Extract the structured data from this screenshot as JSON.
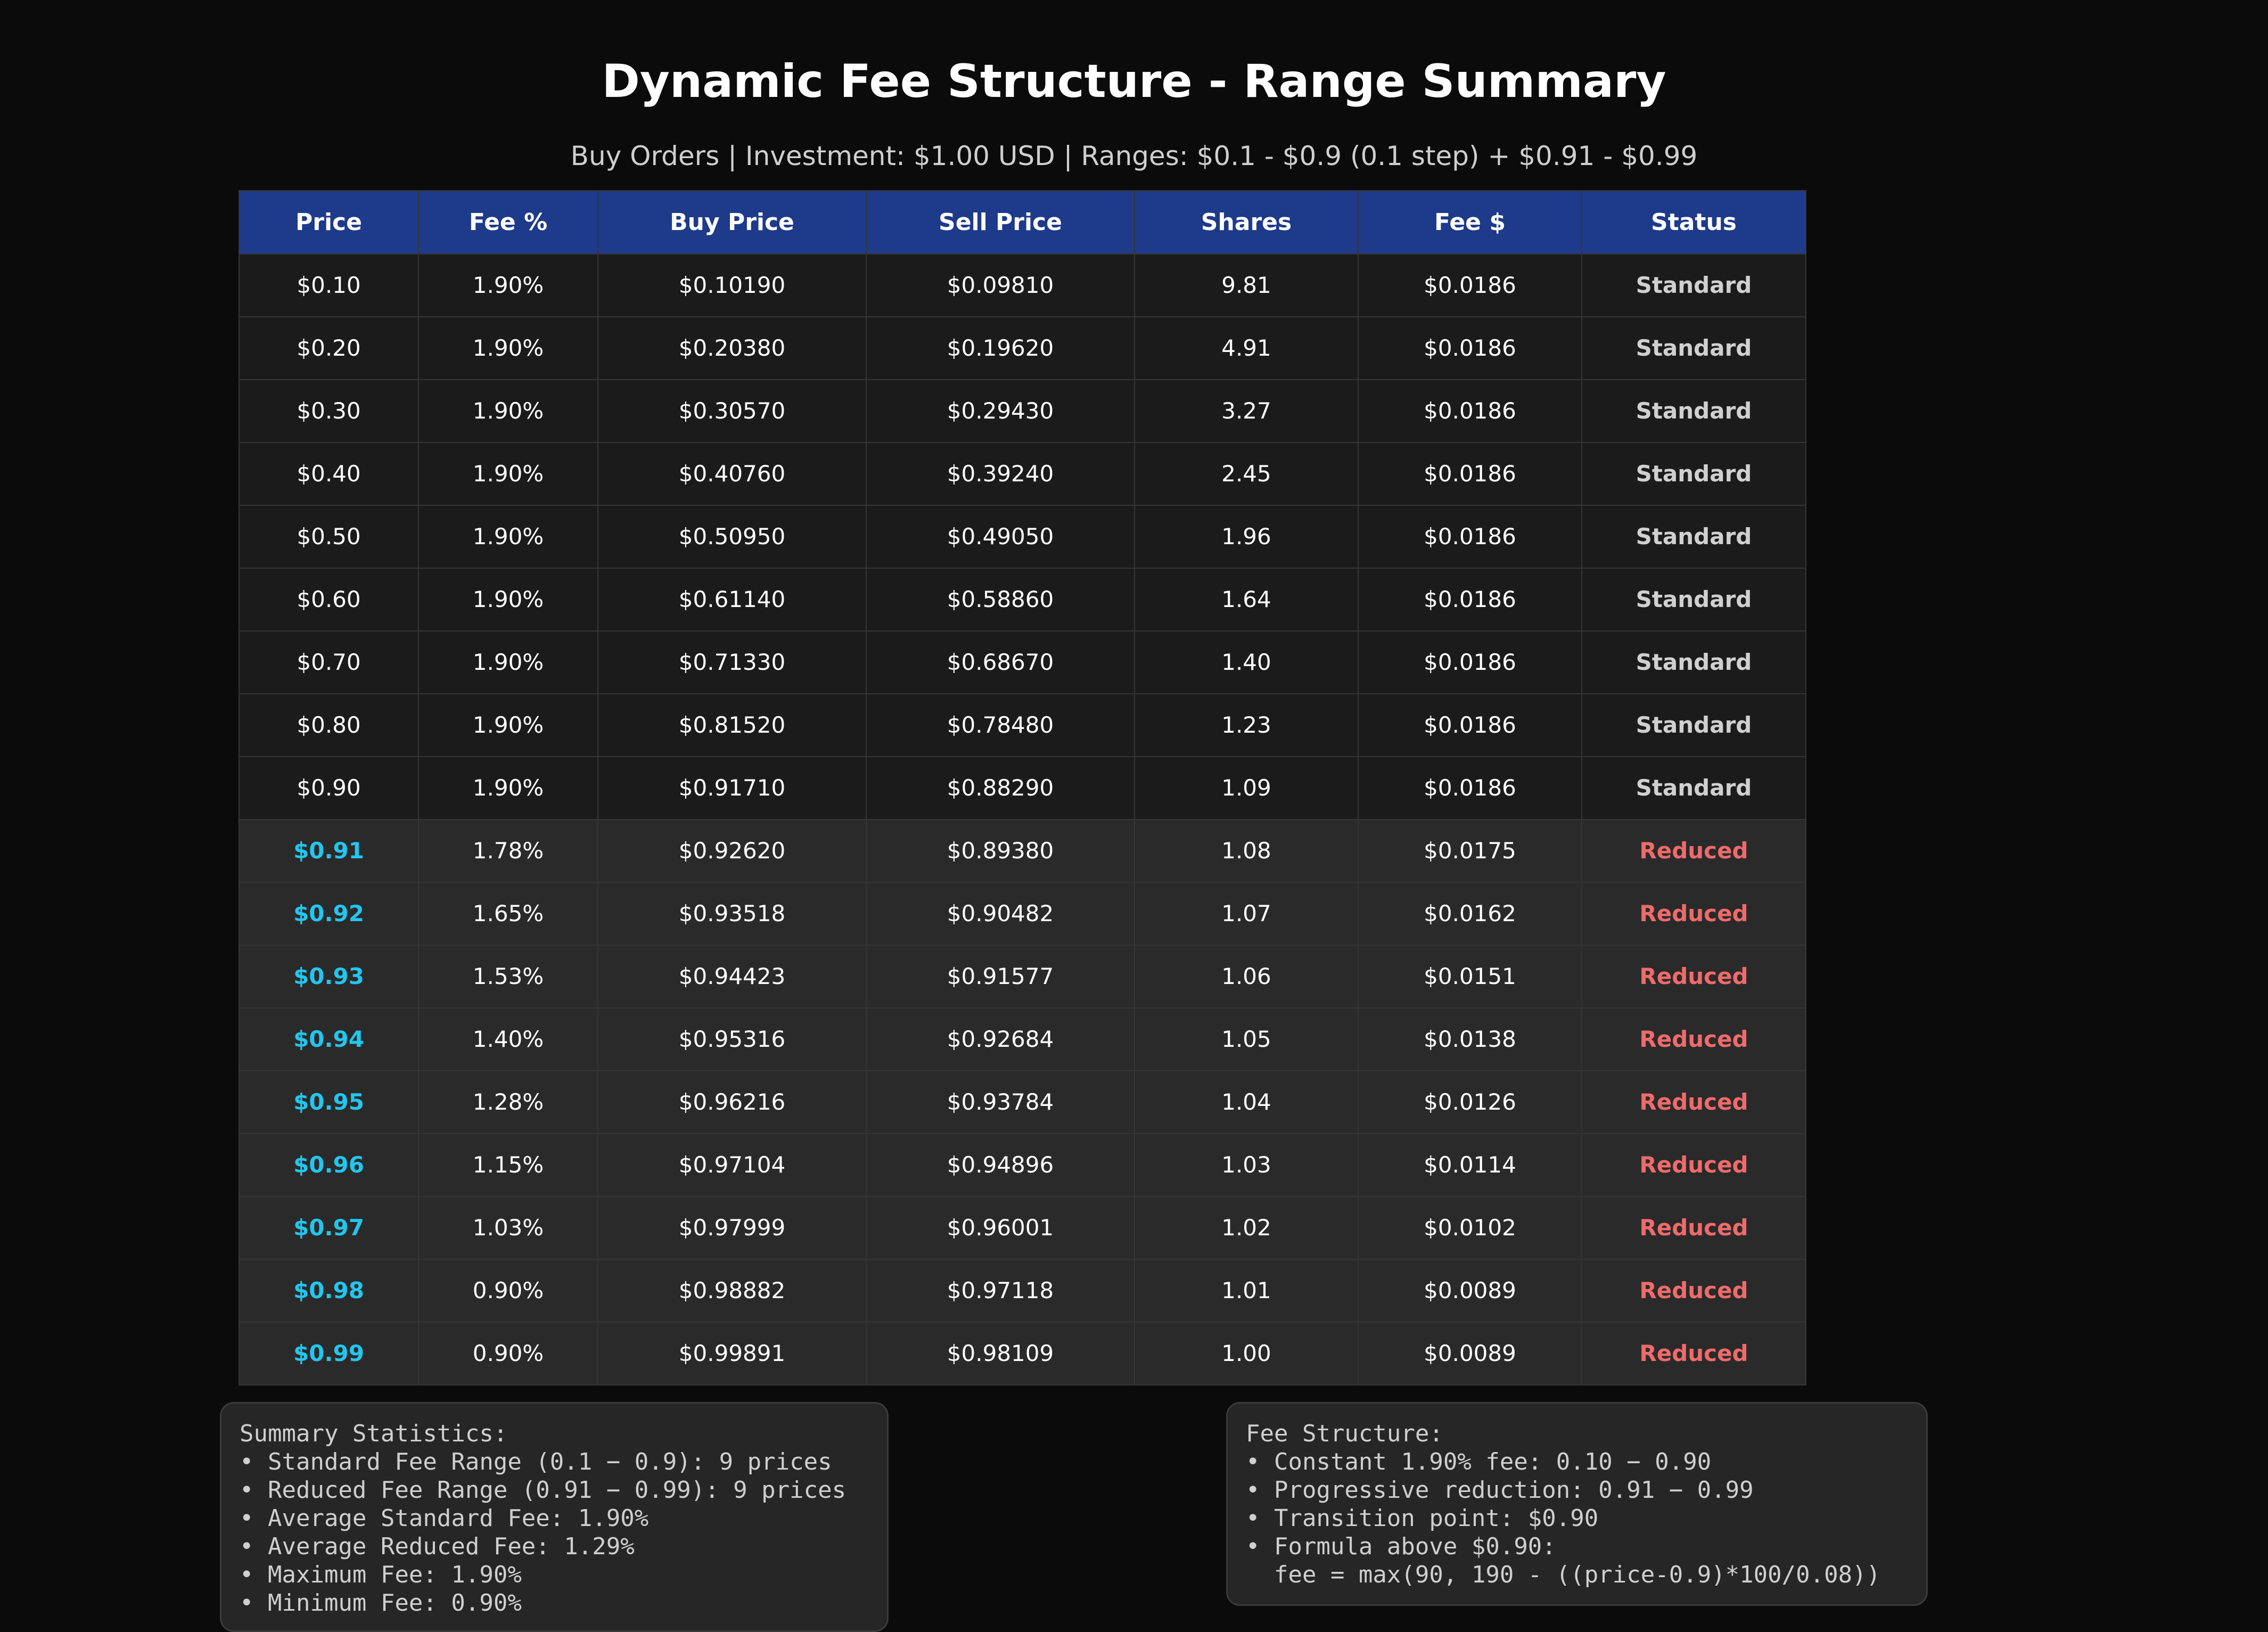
{
  "title": "Dynamic Fee Structure - Range Summary",
  "subtitle": "Buy Orders | Investment: $1.00 USD | Ranges: $0.1 - $0.9 (0.1 step) + $0.91 - $0.99",
  "colors": {
    "background": "#0b0b0b",
    "header_bg": "#1e3a8a",
    "standard_row_bg": "#1b1b1b",
    "reduced_row_bg": "#2a2a2a",
    "reduced_price": "#22c6ee",
    "reduced_status": "#ef6b6b",
    "standard_status": "#d0d0d0"
  },
  "chart_data": {
    "type": "table",
    "columns": [
      "Price",
      "Fee %",
      "Buy Price",
      "Sell Price",
      "Shares",
      "Fee $",
      "Status"
    ],
    "rows": [
      [
        "$0.10",
        "1.90%",
        "$0.10190",
        "$0.09810",
        "9.81",
        "$0.0186",
        "Standard"
      ],
      [
        "$0.20",
        "1.90%",
        "$0.20380",
        "$0.19620",
        "4.91",
        "$0.0186",
        "Standard"
      ],
      [
        "$0.30",
        "1.90%",
        "$0.30570",
        "$0.29430",
        "3.27",
        "$0.0186",
        "Standard"
      ],
      [
        "$0.40",
        "1.90%",
        "$0.40760",
        "$0.39240",
        "2.45",
        "$0.0186",
        "Standard"
      ],
      [
        "$0.50",
        "1.90%",
        "$0.50950",
        "$0.49050",
        "1.96",
        "$0.0186",
        "Standard"
      ],
      [
        "$0.60",
        "1.90%",
        "$0.61140",
        "$0.58860",
        "1.64",
        "$0.0186",
        "Standard"
      ],
      [
        "$0.70",
        "1.90%",
        "$0.71330",
        "$0.68670",
        "1.40",
        "$0.0186",
        "Standard"
      ],
      [
        "$0.80",
        "1.90%",
        "$0.81520",
        "$0.78480",
        "1.23",
        "$0.0186",
        "Standard"
      ],
      [
        "$0.90",
        "1.90%",
        "$0.91710",
        "$0.88290",
        "1.09",
        "$0.0186",
        "Standard"
      ],
      [
        "$0.91",
        "1.78%",
        "$0.92620",
        "$0.89380",
        "1.08",
        "$0.0175",
        "Reduced"
      ],
      [
        "$0.92",
        "1.65%",
        "$0.93518",
        "$0.90482",
        "1.07",
        "$0.0162",
        "Reduced"
      ],
      [
        "$0.93",
        "1.53%",
        "$0.94423",
        "$0.91577",
        "1.06",
        "$0.0151",
        "Reduced"
      ],
      [
        "$0.94",
        "1.40%",
        "$0.95316",
        "$0.92684",
        "1.05",
        "$0.0138",
        "Reduced"
      ],
      [
        "$0.95",
        "1.28%",
        "$0.96216",
        "$0.93784",
        "1.04",
        "$0.0126",
        "Reduced"
      ],
      [
        "$0.96",
        "1.15%",
        "$0.97104",
        "$0.94896",
        "1.03",
        "$0.0114",
        "Reduced"
      ],
      [
        "$0.97",
        "1.03%",
        "$0.97999",
        "$0.96001",
        "1.02",
        "$0.0102",
        "Reduced"
      ],
      [
        "$0.98",
        "0.90%",
        "$0.98882",
        "$0.97118",
        "1.01",
        "$0.0089",
        "Reduced"
      ],
      [
        "$0.99",
        "0.90%",
        "$0.99891",
        "$0.98109",
        "1.00",
        "$0.0089",
        "Reduced"
      ]
    ]
  },
  "summary": {
    "lines": [
      "Summary Statistics:",
      "• Standard Fee Range (0.1 − 0.9): 9 prices",
      "• Reduced Fee Range (0.91 − 0.99): 9 prices",
      "• Average Standard Fee: 1.90%",
      "• Average Reduced Fee: 1.29%",
      "• Maximum Fee: 1.90%",
      "• Minimum Fee: 0.90%"
    ]
  },
  "fee_structure": {
    "lines": [
      "Fee Structure:",
      "• Constant 1.90% fee: 0.10 − 0.90",
      "• Progressive reduction: 0.91 − 0.99",
      "• Transition point: $0.90",
      "• Formula above $0.90:",
      "  fee = max(90, 190 - ((price-0.9)*100/0.08))"
    ]
  }
}
